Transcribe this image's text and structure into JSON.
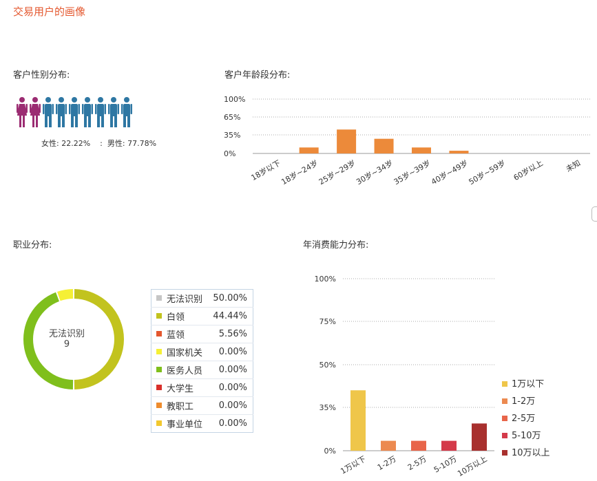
{
  "page_title": "交易用户的画像",
  "sections": {
    "gender": "客户性别分布:",
    "age": "客户年龄段分布:",
    "occupation": "职业分布:",
    "consumption": "年消费能力分布:"
  },
  "gender": {
    "female_label": "女性: 22.22%",
    "separator": ":",
    "male_label": "男性: 77.78%",
    "female_count": 2,
    "male_count": 7,
    "female_color": "#9b2c72",
    "male_color": "#2e77a3"
  },
  "chart_data": [
    {
      "type": "bar",
      "title": "客户年龄段分布:",
      "categories": [
        "18岁以下",
        "18岁~24岁",
        "25岁~29岁",
        "30岁~34岁",
        "35岁~39岁",
        "40岁~49岁",
        "50岁~59岁",
        "60岁以上",
        "未知"
      ],
      "values": [
        0,
        11,
        44,
        27,
        11,
        5,
        0,
        0,
        0
      ],
      "y_ticks": [
        "0%",
        "35%",
        "65%",
        "100%"
      ],
      "ylim": [
        0,
        100
      ],
      "color": "#ec8a3a",
      "grid": true
    },
    {
      "type": "pie",
      "title": "职业分布:",
      "center_label": "无法识别",
      "center_value": "9",
      "slices": [
        {
          "name": "无法识别",
          "pct_label": "50.00%",
          "value": 50.0,
          "color": "#c6c6c6"
        },
        {
          "name": "白领",
          "pct_label": "44.44%",
          "value": 44.44,
          "color": "#c2c31e"
        },
        {
          "name": "蓝领",
          "pct_label": "5.56%",
          "value": 5.56,
          "color": "#e4572e"
        },
        {
          "name": "国家机关",
          "pct_label": "0.00%",
          "value": 0,
          "color": "#f5f036"
        },
        {
          "name": "医务人员",
          "pct_label": "0.00%",
          "value": 0,
          "color": "#7fbf1c"
        },
        {
          "name": "大学生",
          "pct_label": "0.00%",
          "value": 0,
          "color": "#d9302b"
        },
        {
          "name": "教职工",
          "pct_label": "0.00%",
          "value": 0,
          "color": "#ee8c2e"
        },
        {
          "name": "事业单位",
          "pct_label": "0.00%",
          "value": 0,
          "color": "#f2c82e"
        }
      ],
      "ring_colors": [
        "#c2c31e",
        "#7fbf1c",
        "#f5f036"
      ],
      "ring_values": [
        50.0,
        44.44,
        5.56
      ]
    },
    {
      "type": "bar",
      "title": "年消费能力分布:",
      "categories": [
        "1万以下",
        "1-2万",
        "2-5万",
        "5-10万",
        "10万以上"
      ],
      "values": [
        41,
        8,
        8,
        8,
        22
      ],
      "colors": [
        "#efc64a",
        "#ec8a50",
        "#e8654a",
        "#d43a4a",
        "#a8302e"
      ],
      "y_ticks": [
        "0%",
        "35%",
        "50%",
        "75%",
        "100%"
      ],
      "legend": [
        "1万以下",
        "1-2万",
        "2-5万",
        "5-10万",
        "10万以上"
      ],
      "legend_position": "right",
      "grid": true
    }
  ]
}
